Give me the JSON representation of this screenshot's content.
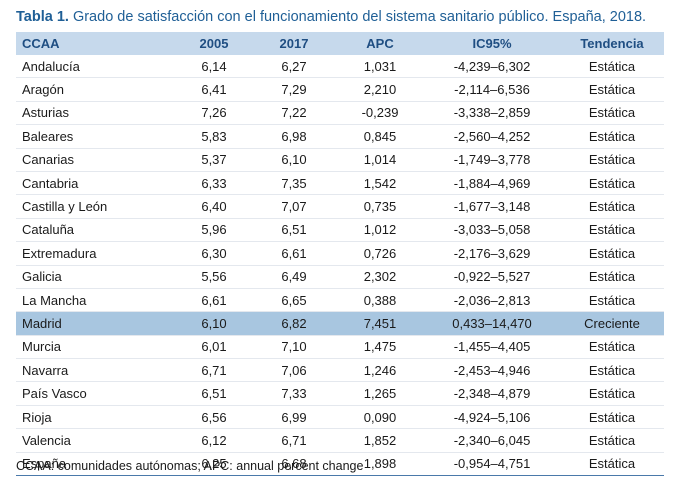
{
  "caption": {
    "label": "Tabla 1.",
    "text": "Grado de satisfacción con el funcionamiento del sistema sanitario público. España, 2018."
  },
  "table": {
    "headers": [
      "CCAA",
      "2005",
      "2017",
      "APC",
      "IC95%",
      "Tendencia"
    ],
    "rows": [
      [
        "Andalucía",
        "6,14",
        "6,27",
        "1,031",
        "-4,239–6,302",
        "Estática"
      ],
      [
        "Aragón",
        "6,41",
        "7,29",
        "2,210",
        "-2,114–6,536",
        "Estática"
      ],
      [
        "Asturias",
        "7,26",
        "7,22",
        "-0,239",
        "-3,338–2,859",
        "Estática"
      ],
      [
        "Baleares",
        "5,83",
        "6,98",
        "0,845",
        "-2,560–4,252",
        "Estática"
      ],
      [
        "Canarias",
        "5,37",
        "6,10",
        "1,014",
        "-1,749–3,778",
        "Estática"
      ],
      [
        "Cantabria",
        "6,33",
        "7,35",
        "1,542",
        "-1,884–4,969",
        "Estática"
      ],
      [
        "Castilla y León",
        "6,40",
        "7,07",
        "0,735",
        "-1,677–3,148",
        "Estática"
      ],
      [
        "Cataluña",
        "5,96",
        "6,51",
        "1,012",
        "-3,033–5,058",
        "Estática"
      ],
      [
        "Extremadura",
        "6,30",
        "6,61",
        "0,726",
        "-2,176–3,629",
        "Estática"
      ],
      [
        "Galicia",
        "5,56",
        "6,49",
        "2,302",
        "-0,922–5,527",
        "Estática"
      ],
      [
        "La Mancha",
        "6,61",
        "6,65",
        "0,388",
        "-2,036–2,813",
        "Estática"
      ],
      [
        "Madrid",
        "6,10",
        "6,82",
        "7,451",
        "0,433–14,470",
        "Creciente"
      ],
      [
        "Murcia",
        "6,01",
        "7,10",
        "1,475",
        "-1,455–4,405",
        "Estática"
      ],
      [
        "Navarra",
        "6,71",
        "7,06",
        "1,246",
        "-2,453–4,946",
        "Estática"
      ],
      [
        "País Vasco",
        "6,51",
        "7,33",
        "1,265",
        "-2,348–4,879",
        "Estática"
      ],
      [
        "Rioja",
        "6,56",
        "6,99",
        "0,090",
        "-4,924–5,106",
        "Estática"
      ],
      [
        "Valencia",
        "6,12",
        "6,71",
        "1,852",
        "-2,340–6,045",
        "Estática"
      ],
      [
        "España",
        "6,25",
        "6,68",
        "1,898",
        "-0,954–4,751",
        "Estática"
      ]
    ],
    "highlight_row": "Madrid"
  },
  "footnote": "CCAA: comunidades autónomas; APC: annual percent change",
  "colors": {
    "title": "#1f5f96",
    "header_bg": "#c6d9ec",
    "header_text": "#1f4e82",
    "highlight_bg": "#a8c6e0"
  }
}
